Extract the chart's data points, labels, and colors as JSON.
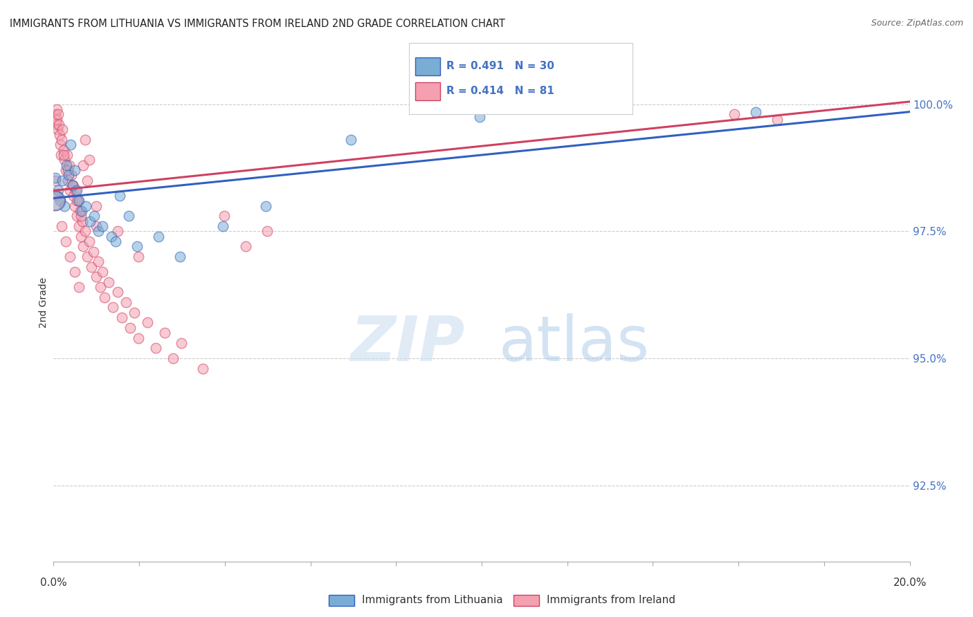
{
  "title": "IMMIGRANTS FROM LITHUANIA VS IMMIGRANTS FROM IRELAND 2ND GRADE CORRELATION CHART",
  "source": "Source: ZipAtlas.com",
  "ylabel": "2nd Grade",
  "y_ticks": [
    92.5,
    95.0,
    97.5,
    100.0
  ],
  "y_tick_labels": [
    "92.5%",
    "95.0%",
    "97.5%",
    "100.0%"
  ],
  "x_range": [
    0.0,
    20.0
  ],
  "y_range": [
    91.0,
    101.2
  ],
  "legend_label_blue": "Immigrants from Lithuania",
  "legend_label_pink": "Immigrants from Ireland",
  "blue_color": "#7aadd4",
  "pink_color": "#f4a0b0",
  "blue_line_color": "#3060c0",
  "pink_line_color": "#d04060",
  "blue_scatter": [
    [
      0.05,
      98.55
    ],
    [
      0.1,
      98.3
    ],
    [
      0.15,
      98.1
    ],
    [
      0.2,
      98.5
    ],
    [
      0.25,
      98.0
    ],
    [
      0.3,
      98.8
    ],
    [
      0.35,
      98.6
    ],
    [
      0.4,
      99.2
    ],
    [
      0.45,
      98.4
    ],
    [
      0.5,
      98.7
    ],
    [
      0.55,
      98.3
    ],
    [
      0.6,
      98.1
    ],
    [
      0.65,
      97.9
    ],
    [
      0.75,
      98.0
    ],
    [
      0.85,
      97.7
    ],
    [
      0.95,
      97.8
    ],
    [
      1.05,
      97.5
    ],
    [
      1.15,
      97.6
    ],
    [
      1.35,
      97.4
    ],
    [
      1.45,
      97.3
    ],
    [
      1.55,
      98.2
    ],
    [
      1.75,
      97.8
    ],
    [
      1.95,
      97.2
    ],
    [
      2.45,
      97.4
    ],
    [
      2.95,
      97.0
    ],
    [
      3.95,
      97.6
    ],
    [
      4.95,
      98.0
    ],
    [
      6.95,
      99.3
    ],
    [
      9.95,
      99.75
    ],
    [
      16.4,
      99.85
    ]
  ],
  "pink_scatter": [
    [
      0.04,
      99.8
    ],
    [
      0.06,
      99.6
    ],
    [
      0.07,
      99.9
    ],
    [
      0.08,
      99.7
    ],
    [
      0.09,
      99.5
    ],
    [
      0.11,
      99.8
    ],
    [
      0.13,
      99.6
    ],
    [
      0.14,
      99.4
    ],
    [
      0.15,
      99.2
    ],
    [
      0.17,
      99.0
    ],
    [
      0.19,
      99.3
    ],
    [
      0.21,
      99.5
    ],
    [
      0.24,
      99.1
    ],
    [
      0.26,
      98.9
    ],
    [
      0.29,
      98.7
    ],
    [
      0.31,
      99.0
    ],
    [
      0.34,
      98.5
    ],
    [
      0.37,
      98.8
    ],
    [
      0.39,
      98.3
    ],
    [
      0.41,
      98.6
    ],
    [
      0.44,
      98.4
    ],
    [
      0.47,
      98.2
    ],
    [
      0.49,
      98.0
    ],
    [
      0.51,
      98.3
    ],
    [
      0.54,
      97.8
    ],
    [
      0.57,
      98.1
    ],
    [
      0.59,
      97.6
    ],
    [
      0.62,
      97.9
    ],
    [
      0.64,
      97.4
    ],
    [
      0.67,
      97.7
    ],
    [
      0.69,
      97.2
    ],
    [
      0.74,
      97.5
    ],
    [
      0.79,
      97.0
    ],
    [
      0.84,
      97.3
    ],
    [
      0.89,
      96.8
    ],
    [
      0.94,
      97.1
    ],
    [
      0.99,
      96.6
    ],
    [
      1.04,
      96.9
    ],
    [
      1.09,
      96.4
    ],
    [
      1.14,
      96.7
    ],
    [
      1.19,
      96.2
    ],
    [
      1.29,
      96.5
    ],
    [
      1.39,
      96.0
    ],
    [
      1.49,
      96.3
    ],
    [
      1.59,
      95.8
    ],
    [
      1.69,
      96.1
    ],
    [
      1.79,
      95.6
    ],
    [
      1.89,
      95.9
    ],
    [
      1.99,
      95.4
    ],
    [
      2.19,
      95.7
    ],
    [
      2.39,
      95.2
    ],
    [
      2.59,
      95.5
    ],
    [
      2.79,
      95.0
    ],
    [
      2.99,
      95.3
    ],
    [
      3.49,
      94.8
    ],
    [
      3.99,
      97.8
    ],
    [
      4.49,
      97.2
    ],
    [
      4.99,
      97.5
    ],
    [
      0.04,
      98.5
    ],
    [
      0.09,
      98.2
    ],
    [
      0.19,
      97.6
    ],
    [
      0.29,
      97.3
    ],
    [
      0.39,
      97.0
    ],
    [
      0.49,
      96.7
    ],
    [
      0.59,
      96.4
    ],
    [
      0.69,
      98.8
    ],
    [
      0.79,
      98.5
    ],
    [
      0.99,
      98.0
    ],
    [
      1.49,
      97.5
    ],
    [
      1.99,
      97.0
    ],
    [
      0.24,
      99.0
    ],
    [
      0.34,
      98.7
    ],
    [
      0.44,
      98.4
    ],
    [
      0.54,
      98.1
    ],
    [
      0.64,
      97.8
    ],
    [
      0.74,
      99.3
    ],
    [
      0.84,
      98.9
    ],
    [
      0.99,
      97.6
    ],
    [
      15.9,
      99.8
    ],
    [
      16.9,
      99.7
    ]
  ],
  "blue_trendline": [
    0.0,
    20.0,
    98.15,
    99.85
  ],
  "pink_trendline": [
    0.0,
    20.0,
    98.3,
    100.05
  ],
  "marker_size": 110,
  "large_marker_size": 400
}
